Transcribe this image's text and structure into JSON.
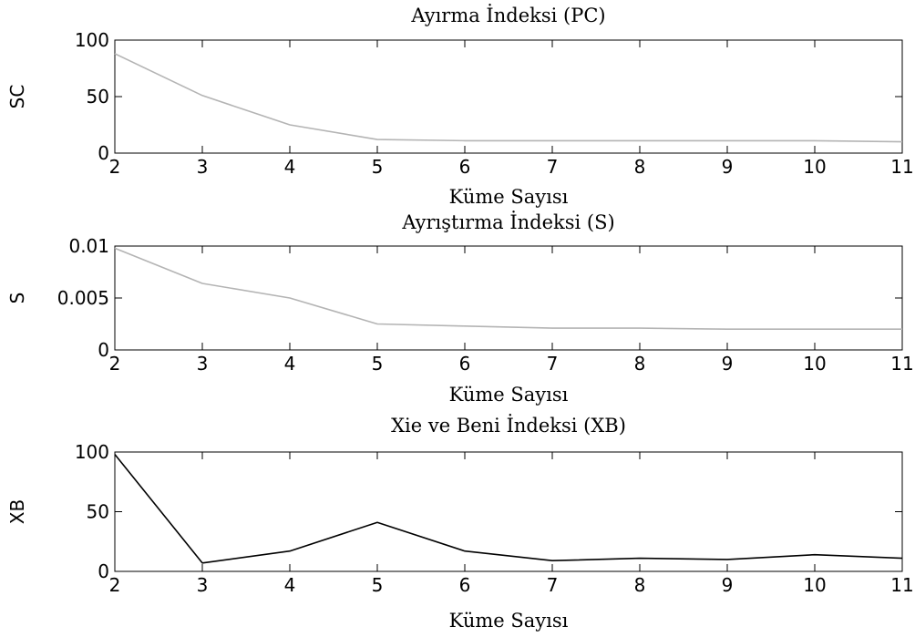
{
  "chart_data": [
    {
      "type": "line",
      "title": "Ayırma İndeksi (PC)",
      "xlabel": "Küme Sayısı",
      "ylabel": "SC",
      "xlim": [
        2,
        11
      ],
      "ylim": [
        0,
        100
      ],
      "xticks": [
        "2",
        "3",
        "4",
        "5",
        "6",
        "7",
        "8",
        "9",
        "10",
        "11"
      ],
      "yticks": [
        "0",
        "50",
        "100"
      ],
      "grid": false,
      "line_color": "#b4b4b4",
      "x": [
        2,
        3,
        4,
        5,
        6,
        7,
        8,
        9,
        10,
        11
      ],
      "values": [
        88,
        51,
        25,
        12,
        11,
        11,
        11,
        11,
        11,
        10
      ]
    },
    {
      "type": "line",
      "title": "Ayrıştırma İndeksi (S)",
      "xlabel": "Küme Sayısı",
      "ylabel": "S",
      "xlim": [
        2,
        11
      ],
      "ylim": [
        0,
        0.01
      ],
      "xticks": [
        "2",
        "3",
        "4",
        "5",
        "6",
        "7",
        "8",
        "9",
        "10",
        "11"
      ],
      "yticks": [
        "0",
        "0.005",
        "0.01"
      ],
      "grid": false,
      "line_color": "#b4b4b4",
      "x": [
        2,
        3,
        4,
        5,
        6,
        7,
        8,
        9,
        10,
        11
      ],
      "values": [
        0.0098,
        0.0064,
        0.005,
        0.0025,
        0.0023,
        0.0021,
        0.0021,
        0.002,
        0.002,
        0.002
      ]
    },
    {
      "type": "line",
      "title": "Xie ve Beni İndeksi (XB)",
      "xlabel": "Küme Sayısı",
      "ylabel": "XB",
      "xlim": [
        2,
        11
      ],
      "ylim": [
        0,
        100
      ],
      "xticks": [
        "2",
        "3",
        "4",
        "5",
        "6",
        "7",
        "8",
        "9",
        "10",
        "11"
      ],
      "yticks": [
        "0",
        "50",
        "100"
      ],
      "grid": false,
      "line_color": "#000000",
      "x": [
        2,
        3,
        4,
        5,
        6,
        7,
        8,
        9,
        10,
        11
      ],
      "values": [
        98,
        7,
        17,
        41,
        17,
        9,
        11,
        10,
        14,
        11
      ]
    }
  ]
}
